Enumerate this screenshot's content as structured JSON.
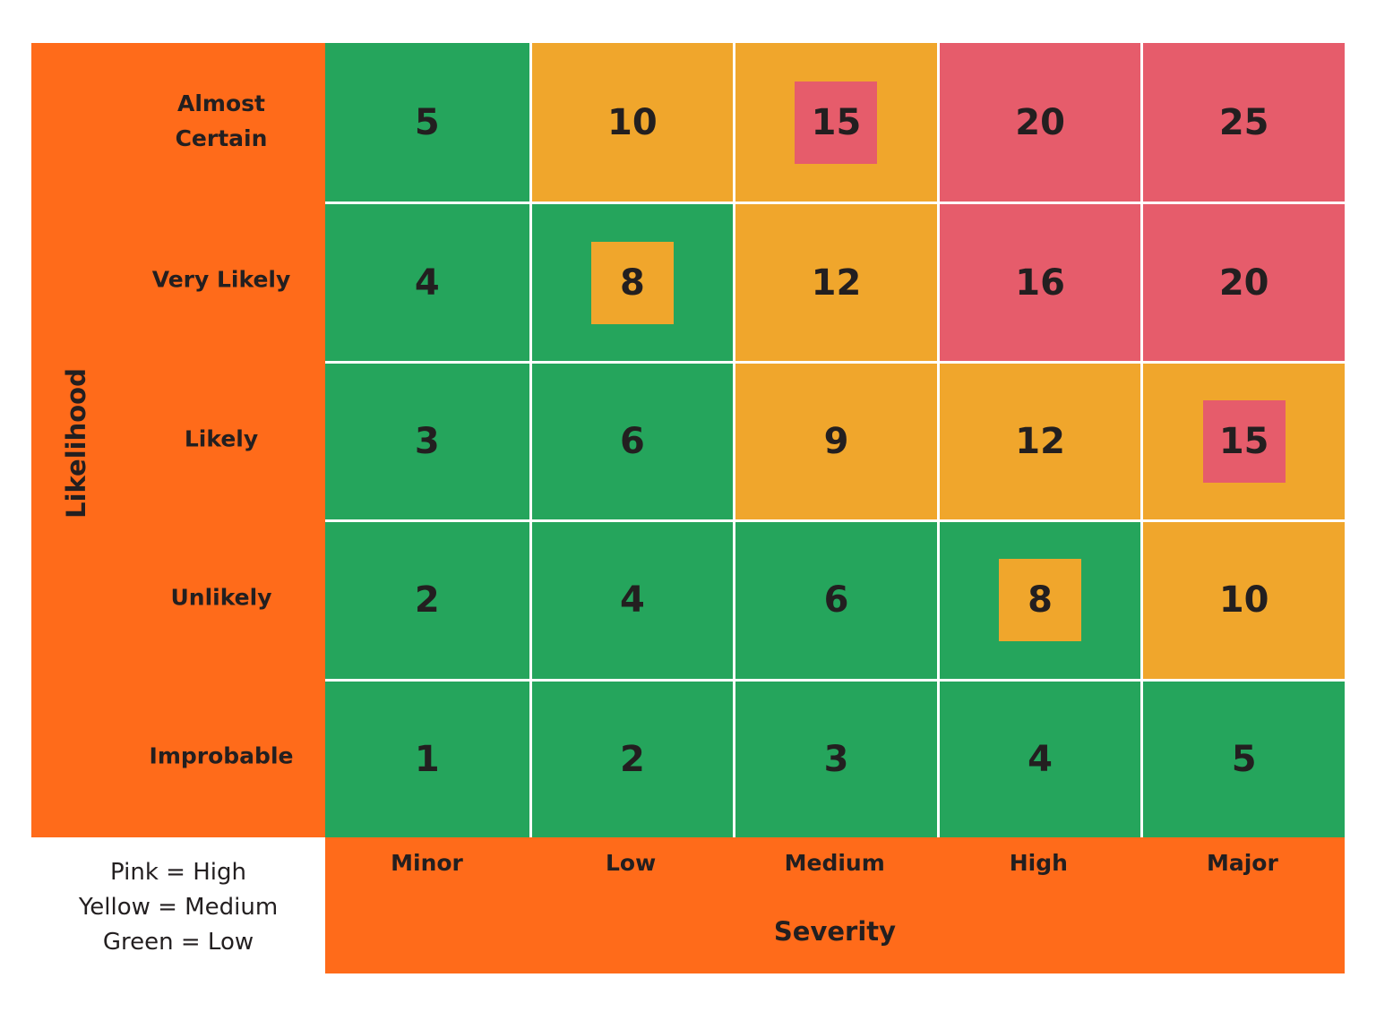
{
  "chart_data": {
    "type": "heatmap",
    "xlabel": "Severity",
    "ylabel": "Likelihood",
    "x_categories": [
      "Minor",
      "Low",
      "Medium",
      "High",
      "Major"
    ],
    "y_categories": [
      "Almost Certain",
      "Very Likely",
      "Likely",
      "Unlikely",
      "Improbable"
    ],
    "values": [
      [
        5,
        10,
        15,
        20,
        25
      ],
      [
        4,
        8,
        12,
        16,
        20
      ],
      [
        3,
        6,
        9,
        12,
        15
      ],
      [
        2,
        4,
        6,
        8,
        10
      ],
      [
        1,
        2,
        3,
        4,
        5
      ]
    ],
    "cell_levels": [
      [
        "low",
        "medium",
        "medium",
        "high",
        "high"
      ],
      [
        "low",
        "low",
        "medium",
        "high",
        "high"
      ],
      [
        "low",
        "low",
        "medium",
        "medium",
        "medium"
      ],
      [
        "low",
        "low",
        "low",
        "low",
        "medium"
      ],
      [
        "low",
        "low",
        "low",
        "low",
        "low"
      ]
    ],
    "highlighted_cells": [
      {
        "row": 0,
        "col": 2,
        "level": "high"
      },
      {
        "row": 1,
        "col": 1,
        "level": "medium"
      },
      {
        "row": 2,
        "col": 4,
        "level": "high"
      },
      {
        "row": 3,
        "col": 3,
        "level": "medium"
      }
    ],
    "legend": [
      "Pink = High",
      "Yellow = Medium",
      "Green = Low"
    ],
    "colors": {
      "high": "#E65C6B",
      "medium": "#F0A62C",
      "low": "#25A55C",
      "axis_panel": "#FF6B1A",
      "text": "#231F20"
    }
  }
}
